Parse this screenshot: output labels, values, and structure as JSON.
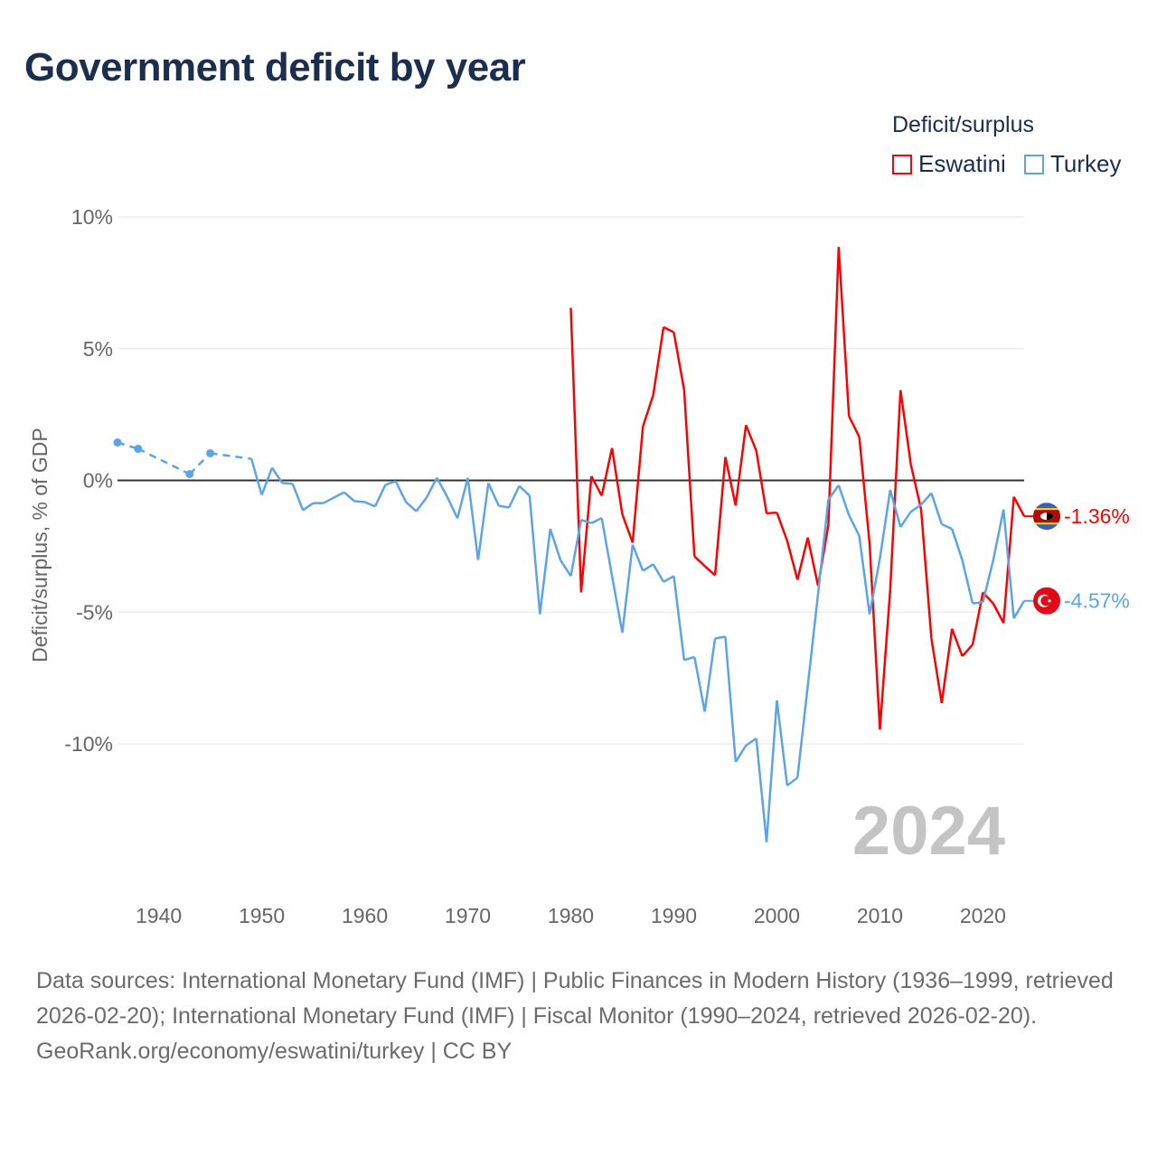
{
  "title": "Government deficit by year",
  "chart_data": {
    "type": "line",
    "title": "Government deficit by year",
    "ylabel": "Deficit/surplus, % of GDP",
    "xlabel": "",
    "xlim": [
      1936,
      2024
    ],
    "ylim": [
      -10,
      10
    ],
    "yticks": [
      10,
      5,
      0,
      -5,
      -10
    ],
    "ytick_labels": [
      "10%",
      "5%",
      "0%",
      "-5%",
      "-10%"
    ],
    "xticks": [
      1940,
      1950,
      1960,
      1970,
      1980,
      1990,
      2000,
      2010,
      2020
    ],
    "xtick_labels": [
      "1940",
      "1950",
      "1960",
      "1970",
      "1980",
      "1990",
      "2000",
      "2010",
      "2020"
    ],
    "grid": true,
    "legend_title": "Deficit/surplus",
    "legend_position": "top-right",
    "year_watermark": "2024",
    "series": [
      {
        "name": "Eswatini",
        "color": "#ff0000",
        "end_label": "-1.36%",
        "flag_icon": "eswatini-flag",
        "x": [
          1980,
          1981,
          1982,
          1983,
          1984,
          1985,
          1986,
          1987,
          1988,
          1989,
          1990,
          1991,
          1992,
          1993,
          1994,
          1995,
          1996,
          1997,
          1998,
          1999,
          2000,
          2001,
          2002,
          2003,
          2004,
          2005,
          2006,
          2007,
          2008,
          2009,
          2010,
          2011,
          2012,
          2013,
          2014,
          2015,
          2016,
          2017,
          2018,
          2019,
          2020,
          2021,
          2022,
          2023,
          2024
        ],
        "values": [
          6.55,
          -4.25,
          0.16,
          -0.58,
          1.23,
          -1.29,
          -2.36,
          2.05,
          3.24,
          5.82,
          5.62,
          3.43,
          -2.88,
          -3.25,
          -3.6,
          0.89,
          -0.95,
          2.1,
          1.13,
          -1.25,
          -1.22,
          -2.29,
          -3.77,
          -2.17,
          -4.0,
          -1.69,
          8.86,
          2.44,
          1.65,
          -2.4,
          -9.45,
          -4.15,
          3.43,
          0.61,
          -1.1,
          -6.0,
          -8.45,
          -5.63,
          -6.67,
          -6.23,
          -4.25,
          -4.67,
          -5.41,
          -0.62,
          -1.36
        ]
      },
      {
        "name": "Turkey",
        "color": "#5ba4e8",
        "end_label": "-4.57%",
        "flag_icon": "turkey-flag",
        "x": [
          1936,
          1938,
          1943,
          1945,
          1949,
          1950,
          1951,
          1952,
          1953,
          1954,
          1955,
          1956,
          1957,
          1958,
          1959,
          1960,
          1961,
          1962,
          1963,
          1964,
          1965,
          1966,
          1967,
          1968,
          1969,
          1970,
          1971,
          1972,
          1973,
          1974,
          1975,
          1976,
          1977,
          1978,
          1979,
          1980,
          1981,
          1982,
          1983,
          1984,
          1985,
          1986,
          1987,
          1988,
          1989,
          1990,
          1991,
          1992,
          1993,
          1994,
          1995,
          1996,
          1997,
          1998,
          1999,
          2000,
          2001,
          2002,
          2003,
          2004,
          2005,
          2006,
          2007,
          2008,
          2009,
          2010,
          2011,
          2012,
          2013,
          2014,
          2015,
          2016,
          2017,
          2018,
          2019,
          2020,
          2021,
          2022,
          2023,
          2024
        ],
        "values": [
          1.44,
          1.2,
          0.24,
          1.03,
          0.82,
          -0.55,
          0.48,
          -0.1,
          -0.13,
          -1.13,
          -0.86,
          -0.86,
          -0.65,
          -0.45,
          -0.79,
          -0.82,
          -0.99,
          -0.17,
          -0.03,
          -0.82,
          -1.17,
          -0.65,
          0.1,
          -0.62,
          -1.44,
          0.1,
          -3.02,
          -0.1,
          -0.96,
          -1.03,
          -0.21,
          -0.58,
          -5.08,
          -1.84,
          -3.03,
          -3.63,
          -1.5,
          -1.62,
          -1.43,
          -3.63,
          -5.78,
          -2.44,
          -3.43,
          -3.18,
          -3.85,
          -3.63,
          -6.82,
          -6.7,
          -8.78,
          -6.0,
          -5.93,
          -10.68,
          -10.06,
          -9.79,
          -13.73,
          -8.35,
          -11.58,
          -11.28,
          -7.8,
          -4.3,
          -0.73,
          -0.18,
          -1.32,
          -2.11,
          -5.08,
          -2.96,
          -0.36,
          -1.77,
          -1.19,
          -0.92,
          -0.48,
          -1.66,
          -1.84,
          -3.03,
          -4.67,
          -4.62,
          -3.03,
          -1.1,
          -5.23,
          -4.57
        ]
      }
    ]
  },
  "footer": {
    "sources": "Data sources: International Monetary Fund (IMF) | Public Finances in Modern History (1936–1999, retrieved 2026-02-20); International Monetary Fund (IMF) | Fiscal Monitor (1990–2024, retrieved 2026-02-20).",
    "attribution": "GeoRank.org/economy/eswatini/turkey | CC BY"
  }
}
